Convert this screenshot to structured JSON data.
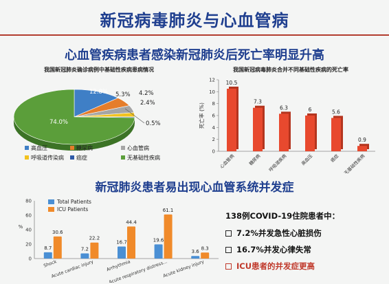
{
  "slide": {
    "title": "新冠病毒肺炎与心血管病",
    "subtitle": "心血管疾病患者感染新冠肺炎后死亡率明显升高",
    "subtitle2": "新冠肺炎患者易出现心血管系统并发症",
    "findings": {
      "heading": "138例COVID-19住院患者中：",
      "items": [
        {
          "text": "7.2%并发急性心脏损伤",
          "highlight": false
        },
        {
          "text": "16.7%并发心律失常",
          "highlight": false
        },
        {
          "text": "ICU患者的并发症更高",
          "highlight": true
        }
      ]
    }
  },
  "chart_data": [
    {
      "type": "pie",
      "title": "我国新冠肺炎确诊病例中基础性疾病患病情况",
      "slices": [
        {
          "label": "高血压",
          "value": 12.8,
          "label_text": "12.8%",
          "color": "#3f7fc6"
        },
        {
          "label": "糖尿病",
          "value": 5.3,
          "label_text": "5.3%",
          "color": "#e57d2b"
        },
        {
          "label": "心血管病",
          "value": 4.2,
          "label_text": "4.2%",
          "color": "#a5a5a5"
        },
        {
          "label": "呼吸道传染病",
          "value": 2.4,
          "label_text": "2.4%",
          "color": "#f2c21e"
        },
        {
          "label": "癌症",
          "value": 0.5,
          "label_text": "0.5%",
          "color": "#2e5aa8"
        },
        {
          "label": "无基础性疾病",
          "value": 74.0,
          "label_text": "74.0%",
          "color": "#5b9e3a"
        }
      ]
    },
    {
      "type": "bar",
      "title": "我国新冠病毒肺炎合并不同基础性疾病的死亡率",
      "ylabel": "死亡率 (%)",
      "ylim": [
        0,
        12
      ],
      "yticks": [
        0,
        2,
        4,
        6,
        8,
        10,
        12
      ],
      "categories": [
        "心血管病",
        "糖尿病",
        "呼吸道疾病",
        "高血压",
        "癌症",
        "无基础性疾病"
      ],
      "values": [
        10.5,
        7.3,
        6.3,
        6.0,
        5.6,
        0.9
      ],
      "color": "#e8492e"
    },
    {
      "type": "bar",
      "ylabel": "%",
      "ylim": [
        0,
        80
      ],
      "yticks": [
        0,
        20,
        40,
        60,
        80
      ],
      "categories": [
        "Shock",
        "Acute cardiac injury",
        "Arrhythmia",
        "Acute respiratory distress...",
        "Acute kidney injury"
      ],
      "series": [
        {
          "name": "Total Patients",
          "values": [
            8.7,
            7.2,
            16.7,
            19.6,
            3.6
          ],
          "color": "#4a8fd4"
        },
        {
          "name": "ICU Patients",
          "values": [
            30.6,
            22.2,
            44.4,
            61.1,
            8.3
          ],
          "color": "#f08a2a"
        }
      ]
    }
  ]
}
